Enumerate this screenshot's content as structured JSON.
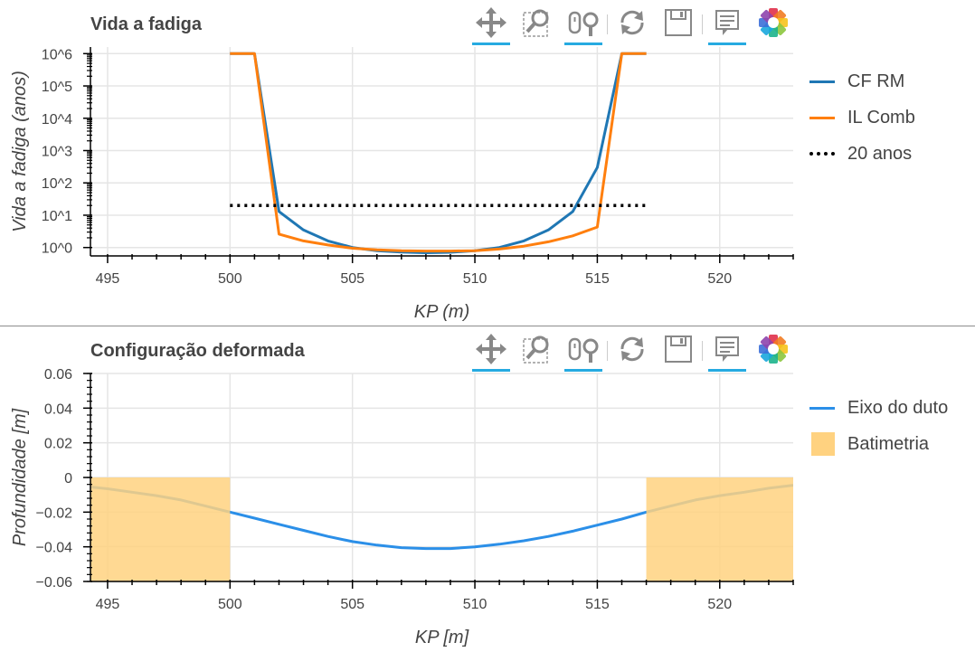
{
  "panels": [
    {
      "title": "Vida a fadiga",
      "toolbar": [
        {
          "icon": "pan-icon",
          "active": true
        },
        {
          "icon": "box-zoom-icon",
          "active": false
        },
        {
          "icon": "wheel-zoom-icon",
          "active": true
        },
        {
          "icon": "reset-icon",
          "active": false
        },
        {
          "icon": "save-icon",
          "active": false
        },
        {
          "icon": "hover-icon",
          "active": true
        },
        {
          "icon": "bokeh-logo-icon",
          "active": false
        }
      ],
      "legend": [
        {
          "label": "CF RM",
          "color": "#1f77b4",
          "style": "line"
        },
        {
          "label": "IL Comb",
          "color": "#ff7f0e",
          "style": "line"
        },
        {
          "label": "20 anos",
          "color": "#000000",
          "style": "dotted"
        }
      ]
    },
    {
      "title": "Configuração deformada",
      "toolbar": [
        {
          "icon": "pan-icon",
          "active": true
        },
        {
          "icon": "box-zoom-icon",
          "active": false
        },
        {
          "icon": "wheel-zoom-icon",
          "active": true
        },
        {
          "icon": "reset-icon",
          "active": false
        },
        {
          "icon": "save-icon",
          "active": false
        },
        {
          "icon": "hover-icon",
          "active": true
        },
        {
          "icon": "bokeh-logo-icon",
          "active": false
        }
      ],
      "legend": [
        {
          "label": "Eixo do duto",
          "color": "#2b8fe8",
          "style": "line"
        },
        {
          "label": "Batimetria",
          "color": "#ffd280",
          "style": "box"
        }
      ]
    }
  ],
  "chart_data": [
    {
      "type": "line",
      "title": "Vida a fadiga",
      "xlabel": "KP (m)",
      "ylabel": "Vida a fadiga (anos)",
      "y_scale": "log",
      "xlim": [
        494.3,
        523.0
      ],
      "ylim": [
        0.55,
        1600000
      ],
      "x_ticks": [
        495,
        500,
        505,
        510,
        515,
        520
      ],
      "y_ticks": [
        1,
        10,
        100,
        1000,
        10000,
        100000,
        1000000
      ],
      "y_tick_labels": [
        "10^0",
        "10^1",
        "10^2",
        "10^3",
        "10^4",
        "10^5",
        "10^6"
      ],
      "grid": true,
      "legend_position": "right",
      "series": [
        {
          "name": "CF RM",
          "color": "#1f77b4",
          "x": [
            500,
            501,
            502,
            503,
            504,
            505,
            506,
            507,
            508,
            509,
            510,
            511,
            512,
            513,
            514,
            515,
            516,
            517
          ],
          "y": [
            1000000,
            1000000,
            13,
            3.5,
            1.6,
            1.0,
            0.8,
            0.72,
            0.69,
            0.71,
            0.8,
            1.0,
            1.6,
            3.5,
            13,
            300,
            1000000,
            1000000
          ]
        },
        {
          "name": "IL Comb",
          "color": "#ff7f0e",
          "x": [
            500,
            501,
            502,
            503,
            504,
            505,
            506,
            507,
            508,
            509,
            510,
            511,
            512,
            513,
            514,
            515,
            516,
            517
          ],
          "y": [
            1000000,
            1000000,
            2.6,
            1.6,
            1.2,
            0.95,
            0.85,
            0.8,
            0.78,
            0.78,
            0.8,
            0.9,
            1.1,
            1.5,
            2.3,
            4.3,
            1000000,
            1000000
          ]
        },
        {
          "name": "20 anos",
          "color": "#000000",
          "style": "dotted",
          "x": [
            500,
            517
          ],
          "y": [
            20,
            20
          ]
        }
      ]
    },
    {
      "type": "line",
      "title": "Configuração deformada",
      "xlabel": "KP [m]",
      "ylabel": "Profundidade [m]",
      "xlim": [
        494.3,
        523.0
      ],
      "ylim": [
        -0.06,
        0.06
      ],
      "x_ticks": [
        495,
        500,
        505,
        510,
        515,
        520
      ],
      "y_ticks": [
        -0.06,
        -0.04,
        -0.02,
        0,
        0.02,
        0.04,
        0.06
      ],
      "y_tick_labels": [
        "−0.06",
        "−0.04",
        "−0.02",
        "0",
        "0.02",
        "0.04",
        "0.06"
      ],
      "grid": true,
      "legend_position": "right",
      "series": [
        {
          "name": "Eixo do duto",
          "color": "#2b8fe8",
          "x": [
            494.3,
            495,
            496,
            497,
            498,
            499,
            500,
            501,
            502,
            503,
            504,
            505,
            506,
            507,
            508,
            509,
            510,
            511,
            512,
            513,
            514,
            515,
            516,
            517,
            518,
            519,
            520,
            521,
            522,
            523
          ],
          "y": [
            -0.0055,
            -0.0065,
            -0.0085,
            -0.0105,
            -0.013,
            -0.0165,
            -0.02,
            -0.0235,
            -0.027,
            -0.0305,
            -0.034,
            -0.037,
            -0.039,
            -0.0405,
            -0.041,
            -0.041,
            -0.04,
            -0.0385,
            -0.0365,
            -0.034,
            -0.031,
            -0.0275,
            -0.024,
            -0.02,
            -0.0165,
            -0.013,
            -0.0105,
            -0.0085,
            -0.0062,
            -0.0045
          ]
        }
      ],
      "areas": [
        {
          "name": "Batimetria",
          "color": "#ffd280",
          "x": [
            494.3,
            500
          ],
          "y": [
            -0.06,
            0
          ]
        },
        {
          "name": "Batimetria",
          "color": "#ffd280",
          "x": [
            517,
            523.0
          ],
          "y": [
            -0.06,
            0
          ]
        }
      ]
    }
  ]
}
